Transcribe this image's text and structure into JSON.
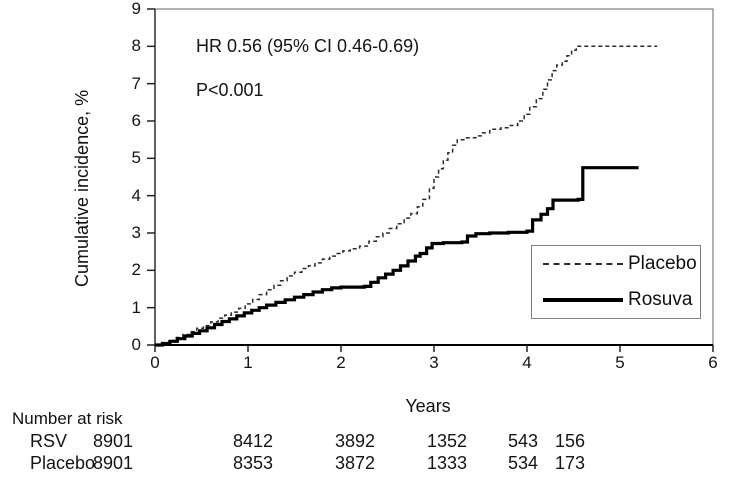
{
  "annotation": {
    "line1": "HR 0.56 (95% CI 0.46-0.69)",
    "line2": "P<0.001"
  },
  "axes": {
    "y_label": "Cumulative incidence, %",
    "x_label": "Years",
    "y_tick_labels": [
      "0",
      "1",
      "2",
      "3",
      "4",
      "5",
      "6",
      "7",
      "8",
      "9"
    ],
    "x_tick_labels": [
      "0",
      "1",
      "2",
      "3",
      "4",
      "5",
      "6"
    ]
  },
  "legend": {
    "items": [
      {
        "label": "Placebo",
        "style": "dashed"
      },
      {
        "label": "Rosuva",
        "style": "solid"
      }
    ]
  },
  "risk_table": {
    "title": "Number at risk",
    "rows": [
      {
        "label": "RSV",
        "values": [
          "8901",
          "8412",
          "3892",
          "1352",
          "543",
          "156"
        ]
      },
      {
        "label": "Placebo",
        "values": [
          "8901",
          "8353",
          "3872",
          "1333",
          "534",
          "173"
        ]
      }
    ]
  },
  "colors": {
    "placebo_line": "#2b2b2b",
    "rosuva_line": "#000000",
    "axis": "#000000",
    "frame": "#666666"
  },
  "chart_data": {
    "type": "line",
    "subtype": "kaplan-meier-step",
    "title": "",
    "xlabel": "Years",
    "ylabel": "Cumulative incidence, %",
    "xlim": [
      0,
      6
    ],
    "ylim": [
      0,
      9
    ],
    "x_ticks": [
      0,
      1,
      2,
      3,
      4,
      5,
      6
    ],
    "y_ticks": [
      0,
      1,
      2,
      3,
      4,
      5,
      6,
      7,
      8,
      9
    ],
    "grid": false,
    "legend_position": "right-middle",
    "annotations": [
      "HR 0.56 (95% CI 0.46-0.69)",
      "P<0.001"
    ],
    "series": [
      {
        "name": "Placebo",
        "line": "dashed",
        "color": "#2b2b2b",
        "width": 1.5,
        "points": [
          [
            0,
            0
          ],
          [
            0.08,
            0.05
          ],
          [
            0.15,
            0.12
          ],
          [
            0.22,
            0.2
          ],
          [
            0.3,
            0.28
          ],
          [
            0.38,
            0.36
          ],
          [
            0.45,
            0.45
          ],
          [
            0.52,
            0.52
          ],
          [
            0.6,
            0.62
          ],
          [
            0.68,
            0.72
          ],
          [
            0.75,
            0.8
          ],
          [
            0.82,
            0.88
          ],
          [
            0.9,
            0.98
          ],
          [
            0.97,
            1.1
          ],
          [
            1.05,
            1.22
          ],
          [
            1.12,
            1.35
          ],
          [
            1.2,
            1.48
          ],
          [
            1.28,
            1.6
          ],
          [
            1.35,
            1.72
          ],
          [
            1.42,
            1.85
          ],
          [
            1.5,
            1.95
          ],
          [
            1.58,
            2.05
          ],
          [
            1.65,
            2.12
          ],
          [
            1.72,
            2.2
          ],
          [
            1.8,
            2.3
          ],
          [
            1.88,
            2.38
          ],
          [
            1.95,
            2.45
          ],
          [
            2.02,
            2.52
          ],
          [
            2.1,
            2.58
          ],
          [
            2.2,
            2.65
          ],
          [
            2.3,
            2.78
          ],
          [
            2.38,
            2.9
          ],
          [
            2.45,
            3.0
          ],
          [
            2.52,
            3.12
          ],
          [
            2.6,
            3.25
          ],
          [
            2.68,
            3.4
          ],
          [
            2.75,
            3.52
          ],
          [
            2.82,
            3.7
          ],
          [
            2.88,
            3.9
          ],
          [
            2.95,
            4.2
          ],
          [
            3.0,
            4.5
          ],
          [
            3.05,
            4.72
          ],
          [
            3.1,
            4.95
          ],
          [
            3.15,
            5.15
          ],
          [
            3.2,
            5.35
          ],
          [
            3.25,
            5.5
          ],
          [
            3.35,
            5.55
          ],
          [
            3.45,
            5.6
          ],
          [
            3.52,
            5.68
          ],
          [
            3.6,
            5.78
          ],
          [
            3.72,
            5.82
          ],
          [
            3.82,
            5.88
          ],
          [
            3.9,
            6.0
          ],
          [
            3.97,
            6.18
          ],
          [
            4.03,
            6.38
          ],
          [
            4.1,
            6.6
          ],
          [
            4.17,
            6.85
          ],
          [
            4.22,
            7.1
          ],
          [
            4.27,
            7.35
          ],
          [
            4.32,
            7.5
          ],
          [
            4.38,
            7.6
          ],
          [
            4.43,
            7.75
          ],
          [
            4.48,
            7.9
          ],
          [
            4.53,
            8.0
          ],
          [
            5.4,
            8.0
          ]
        ]
      },
      {
        "name": "Rosuva",
        "line": "solid",
        "color": "#000000",
        "width": 3.2,
        "points": [
          [
            0,
            0
          ],
          [
            0.08,
            0.04
          ],
          [
            0.16,
            0.1
          ],
          [
            0.24,
            0.17
          ],
          [
            0.32,
            0.24
          ],
          [
            0.4,
            0.31
          ],
          [
            0.48,
            0.38
          ],
          [
            0.56,
            0.46
          ],
          [
            0.64,
            0.55
          ],
          [
            0.72,
            0.63
          ],
          [
            0.8,
            0.7
          ],
          [
            0.88,
            0.78
          ],
          [
            0.96,
            0.86
          ],
          [
            1.04,
            0.93
          ],
          [
            1.12,
            1.0
          ],
          [
            1.2,
            1.07
          ],
          [
            1.3,
            1.14
          ],
          [
            1.4,
            1.21
          ],
          [
            1.5,
            1.28
          ],
          [
            1.6,
            1.35
          ],
          [
            1.7,
            1.42
          ],
          [
            1.8,
            1.48
          ],
          [
            1.9,
            1.53
          ],
          [
            2.0,
            1.55
          ],
          [
            2.25,
            1.57
          ],
          [
            2.32,
            1.68
          ],
          [
            2.4,
            1.8
          ],
          [
            2.48,
            1.9
          ],
          [
            2.56,
            2.0
          ],
          [
            2.64,
            2.12
          ],
          [
            2.72,
            2.25
          ],
          [
            2.8,
            2.38
          ],
          [
            2.85,
            2.45
          ],
          [
            2.92,
            2.6
          ],
          [
            2.98,
            2.72
          ],
          [
            3.1,
            2.74
          ],
          [
            3.3,
            2.76
          ],
          [
            3.36,
            2.92
          ],
          [
            3.45,
            2.98
          ],
          [
            3.6,
            3.0
          ],
          [
            3.8,
            3.02
          ],
          [
            4.0,
            3.05
          ],
          [
            4.06,
            3.35
          ],
          [
            4.15,
            3.5
          ],
          [
            4.22,
            3.65
          ],
          [
            4.28,
            3.88
          ],
          [
            4.55,
            3.9
          ],
          [
            4.6,
            4.75
          ],
          [
            5.2,
            4.75
          ]
        ]
      }
    ]
  }
}
